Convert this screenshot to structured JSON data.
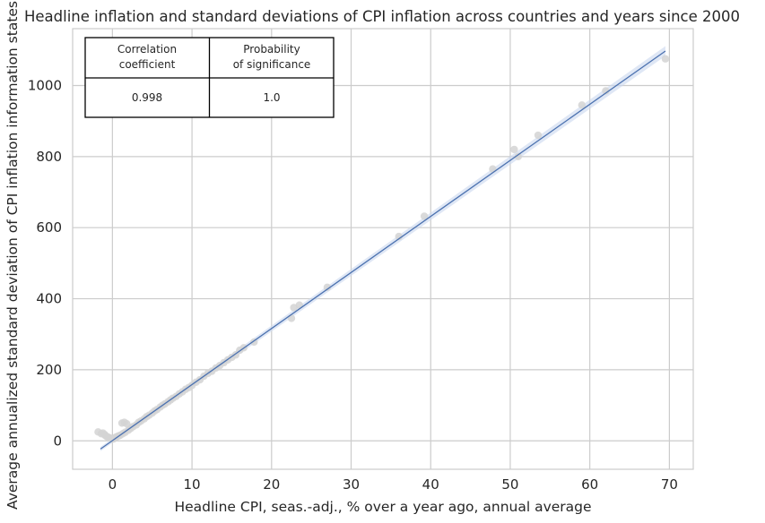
{
  "chart_data": {
    "type": "scatter",
    "title": "Headline inflation and standard deviations of CPI inflation across countries and years since 2000",
    "xlabel": "Headline CPI, seas.-adj., % over a year ago, annual average",
    "ylabel": "Average annualized standard deviation of CPI inflation information states",
    "xlim": [
      -5,
      73
    ],
    "ylim": [
      -80,
      1160
    ],
    "xticks": [
      0,
      10,
      20,
      30,
      40,
      50,
      60,
      70
    ],
    "yticks": [
      0,
      200,
      400,
      600,
      800,
      1000
    ],
    "grid": true,
    "legend": "none",
    "point_color": "#d3d3d3",
    "line_color": "#4c72b0",
    "ci_color": "#c9d7ee",
    "fit_line": {
      "x": [
        -1.5,
        69.5
      ],
      "y": [
        -23,
        1097
      ]
    },
    "points": [
      [
        -1.8,
        25
      ],
      [
        -1.4,
        20
      ],
      [
        -1.2,
        22
      ],
      [
        -1.0,
        18
      ],
      [
        -0.9,
        15
      ],
      [
        -0.7,
        12
      ],
      [
        -0.5,
        10
      ],
      [
        -0.3,
        8
      ],
      [
        0.0,
        5
      ],
      [
        0.2,
        6
      ],
      [
        0.4,
        10
      ],
      [
        0.6,
        12
      ],
      [
        0.8,
        14
      ],
      [
        1.0,
        16
      ],
      [
        1.2,
        50
      ],
      [
        1.5,
        52
      ],
      [
        1.8,
        48
      ],
      [
        1.3,
        20
      ],
      [
        1.6,
        24
      ],
      [
        2.0,
        30
      ],
      [
        2.3,
        35
      ],
      [
        2.6,
        40
      ],
      [
        3.0,
        45
      ],
      [
        3.3,
        52
      ],
      [
        3.6,
        56
      ],
      [
        4.0,
        62
      ],
      [
        4.3,
        68
      ],
      [
        4.6,
        72
      ],
      [
        5.0,
        78
      ],
      [
        5.3,
        84
      ],
      [
        5.6,
        88
      ],
      [
        6.0,
        95
      ],
      [
        6.3,
        100
      ],
      [
        6.6,
        104
      ],
      [
        7.0,
        110
      ],
      [
        7.3,
        115
      ],
      [
        7.6,
        120
      ],
      [
        8.0,
        125
      ],
      [
        8.4,
        132
      ],
      [
        8.8,
        138
      ],
      [
        9.2,
        145
      ],
      [
        9.6,
        150
      ],
      [
        10.0,
        156
      ],
      [
        10.5,
        165
      ],
      [
        11.0,
        172
      ],
      [
        11.5,
        182
      ],
      [
        12.0,
        190
      ],
      [
        12.5,
        196
      ],
      [
        13.0,
        205
      ],
      [
        13.5,
        212
      ],
      [
        14.0,
        220
      ],
      [
        14.5,
        228
      ],
      [
        15.0,
        235
      ],
      [
        15.5,
        242
      ],
      [
        16.0,
        255
      ],
      [
        16.5,
        262
      ],
      [
        17.8,
        278
      ],
      [
        22.5,
        345
      ],
      [
        22.8,
        375
      ],
      [
        23.5,
        382
      ],
      [
        27.0,
        432
      ],
      [
        36.0,
        575
      ],
      [
        39.2,
        632
      ],
      [
        47.8,
        765
      ],
      [
        50.5,
        820
      ],
      [
        51.0,
        800
      ],
      [
        53.5,
        860
      ],
      [
        59.0,
        945
      ],
      [
        62.0,
        985
      ],
      [
        69.5,
        1075
      ]
    ],
    "table": {
      "headers": [
        "Correlation coefficient",
        "Probability of significance"
      ],
      "header_lines": [
        [
          "Correlation",
          "coefficient"
        ],
        [
          "Probability",
          "of significance"
        ]
      ],
      "values": [
        "0.998",
        "1.0"
      ]
    }
  }
}
